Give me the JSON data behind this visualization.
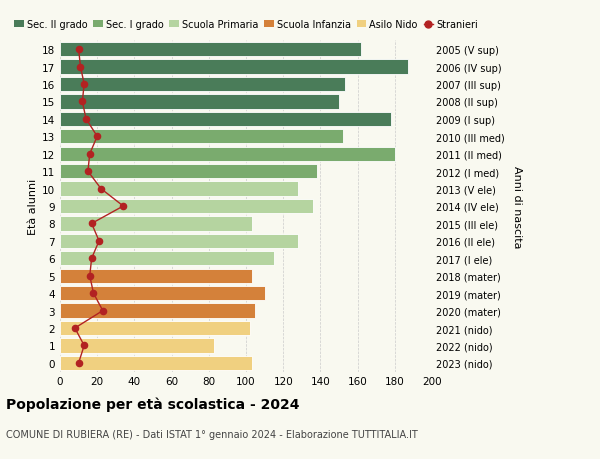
{
  "ages": [
    18,
    17,
    16,
    15,
    14,
    13,
    12,
    11,
    10,
    9,
    8,
    7,
    6,
    5,
    4,
    3,
    2,
    1,
    0
  ],
  "years": [
    "2005 (V sup)",
    "2006 (IV sup)",
    "2007 (III sup)",
    "2008 (II sup)",
    "2009 (I sup)",
    "2010 (III med)",
    "2011 (II med)",
    "2012 (I med)",
    "2013 (V ele)",
    "2014 (IV ele)",
    "2015 (III ele)",
    "2016 (II ele)",
    "2017 (I ele)",
    "2018 (mater)",
    "2019 (mater)",
    "2020 (mater)",
    "2021 (nido)",
    "2022 (nido)",
    "2023 (nido)"
  ],
  "bar_values": [
    162,
    187,
    153,
    150,
    178,
    152,
    180,
    138,
    128,
    136,
    103,
    128,
    115,
    103,
    110,
    105,
    102,
    83,
    103
  ],
  "bar_colors": [
    "#4a7c59",
    "#4a7c59",
    "#4a7c59",
    "#4a7c59",
    "#4a7c59",
    "#7aab6e",
    "#7aab6e",
    "#7aab6e",
    "#b5d4a0",
    "#b5d4a0",
    "#b5d4a0",
    "#b5d4a0",
    "#b5d4a0",
    "#d4813a",
    "#d4813a",
    "#d4813a",
    "#f0d080",
    "#f0d080",
    "#f0d080"
  ],
  "stranieri_values": [
    10,
    11,
    13,
    12,
    14,
    20,
    16,
    15,
    22,
    34,
    17,
    21,
    17,
    16,
    18,
    23,
    8,
    13,
    10
  ],
  "legend_labels": [
    "Sec. II grado",
    "Sec. I grado",
    "Scuola Primaria",
    "Scuola Infanzia",
    "Asilo Nido",
    "Stranieri"
  ],
  "legend_colors": [
    "#4a7c59",
    "#7aab6e",
    "#b5d4a0",
    "#d4813a",
    "#f0d080",
    "#b22222"
  ],
  "ylabel_left": "Età alunni",
  "ylabel_right": "Anni di nascita",
  "title": "Popolazione per età scolastica - 2024",
  "subtitle": "COMUNE DI RUBIERA (RE) - Dati ISTAT 1° gennaio 2024 - Elaborazione TUTTITALIA.IT",
  "xlim": [
    0,
    200
  ],
  "background_color": "#f9f9f0",
  "grid_color": "#cccccc"
}
